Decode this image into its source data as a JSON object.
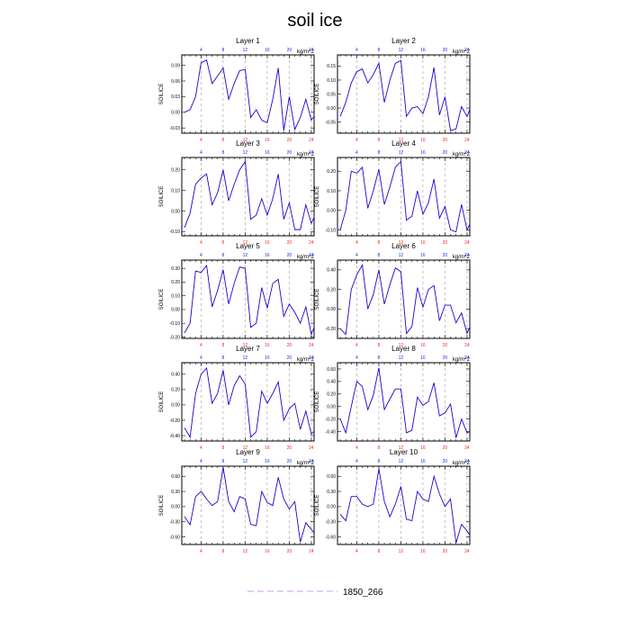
{
  "figure_title": "soil ice",
  "legend": {
    "label": "1850_266",
    "color": "#cc99ee"
  },
  "colors": {
    "line": "#2200cc",
    "bottom_ticks": "#ff2222",
    "top_ticks": "#2222ff",
    "grid": "#888888"
  },
  "chart_data": [
    {
      "type": "line",
      "title": "Layer 1",
      "units": "kg/m^2",
      "ylabel": "SOILICE",
      "xlim": [
        0.5,
        24.5
      ],
      "ylim": [
        -0.04,
        0.11
      ],
      "yticks": [
        -0.03,
        0.0,
        0.03,
        0.06,
        0.09
      ],
      "ytick_labels": [
        "-0.03",
        "0.00",
        "0.03",
        "0.06",
        "0.09"
      ],
      "x": [
        1,
        2,
        3,
        4,
        5,
        6,
        7,
        8,
        9,
        10,
        11,
        12,
        13,
        14,
        15,
        16,
        17,
        18,
        19,
        20,
        21,
        22,
        23,
        24,
        25
      ],
      "values": [
        0.0,
        0.005,
        0.03,
        0.095,
        0.1,
        0.055,
        0.07,
        0.085,
        0.025,
        0.055,
        0.08,
        0.082,
        -0.01,
        0.005,
        -0.015,
        -0.02,
        0.025,
        0.085,
        -0.035,
        0.03,
        -0.033,
        -0.01,
        0.025,
        -0.015,
        0.0
      ]
    },
    {
      "type": "line",
      "title": "Layer 2",
      "units": "kg/m^2",
      "ylabel": "SOILICE",
      "xlim": [
        0.5,
        24.5
      ],
      "ylim": [
        -0.09,
        0.19
      ],
      "yticks": [
        -0.05,
        0.0,
        0.05,
        0.1,
        0.15
      ],
      "ytick_labels": [
        "-0.05",
        "0.00",
        "0.05",
        "0.10",
        "0.15"
      ],
      "x": [
        1,
        2,
        3,
        4,
        5,
        6,
        7,
        8,
        9,
        10,
        11,
        12,
        13,
        14,
        15,
        16,
        17,
        18,
        19,
        20,
        21,
        22,
        23,
        24,
        25
      ],
      "values": [
        -0.03,
        0.02,
        0.09,
        0.13,
        0.14,
        0.09,
        0.12,
        0.16,
        0.02,
        0.1,
        0.16,
        0.17,
        -0.03,
        0.0,
        0.005,
        -0.02,
        0.04,
        0.145,
        -0.025,
        0.04,
        -0.08,
        -0.075,
        0.005,
        -0.03,
        0.02
      ]
    },
    {
      "type": "line",
      "title": "Layer 3",
      "units": "kg/m^2",
      "ylabel": "SOILICE",
      "xlim": [
        0.5,
        24.5
      ],
      "ylim": [
        -0.12,
        0.26
      ],
      "yticks": [
        -0.1,
        0.0,
        0.1,
        0.2
      ],
      "ytick_labels": [
        "-0.10",
        "0.00",
        "0.10",
        "0.20"
      ],
      "x": [
        1,
        2,
        3,
        4,
        5,
        6,
        7,
        8,
        9,
        10,
        11,
        12,
        13,
        14,
        15,
        16,
        17,
        18,
        19,
        20,
        21,
        22,
        23,
        24,
        25
      ],
      "values": [
        -0.08,
        -0.01,
        0.13,
        0.16,
        0.18,
        0.03,
        0.09,
        0.2,
        0.05,
        0.13,
        0.2,
        0.24,
        -0.04,
        -0.02,
        0.06,
        -0.02,
        0.06,
        0.18,
        -0.04,
        0.04,
        -0.09,
        -0.09,
        0.03,
        -0.06,
        0.0
      ]
    },
    {
      "type": "line",
      "title": "Layer 4",
      "units": "kg/m^2",
      "ylabel": "SOILICE",
      "xlim": [
        0.5,
        24.5
      ],
      "ylim": [
        -0.13,
        0.27
      ],
      "yticks": [
        -0.1,
        0.0,
        0.1,
        0.2
      ],
      "ytick_labels": [
        "-0.10",
        "0.00",
        "0.10",
        "0.20"
      ],
      "x": [
        1,
        2,
        3,
        4,
        5,
        6,
        7,
        8,
        9,
        10,
        11,
        12,
        13,
        14,
        15,
        16,
        17,
        18,
        19,
        20,
        21,
        22,
        23,
        24,
        25
      ],
      "values": [
        -0.1,
        0.0,
        0.2,
        0.19,
        0.22,
        0.01,
        0.1,
        0.21,
        0.03,
        0.12,
        0.22,
        0.25,
        -0.05,
        -0.03,
        0.1,
        -0.02,
        0.04,
        0.16,
        -0.04,
        0.02,
        -0.1,
        -0.11,
        0.03,
        -0.1,
        -0.04
      ]
    },
    {
      "type": "line",
      "title": "Layer 5",
      "units": "kg/m^2",
      "ylabel": "SOILICE",
      "xlim": [
        0.5,
        24.5
      ],
      "ylim": [
        -0.21,
        0.36
      ],
      "yticks": [
        -0.2,
        -0.1,
        0.0,
        0.1,
        0.2,
        0.3
      ],
      "ytick_labels": [
        "-0.20",
        "-0.10",
        "0.00",
        "0.10",
        "0.20",
        "0.30"
      ],
      "x": [
        1,
        2,
        3,
        4,
        5,
        6,
        7,
        8,
        9,
        10,
        11,
        12,
        13,
        14,
        15,
        16,
        17,
        18,
        19,
        20,
        21,
        22,
        23,
        24,
        25
      ],
      "values": [
        -0.17,
        -0.1,
        0.28,
        0.27,
        0.32,
        0.02,
        0.14,
        0.29,
        0.04,
        0.19,
        0.31,
        0.3,
        -0.13,
        -0.1,
        0.16,
        0.01,
        0.19,
        0.22,
        -0.05,
        0.04,
        -0.02,
        -0.1,
        0.02,
        -0.18,
        -0.08
      ]
    },
    {
      "type": "line",
      "title": "Layer 6",
      "units": "kg/m^2",
      "ylabel": "SOILICE",
      "xlim": [
        0.5,
        24.5
      ],
      "ylim": [
        -0.3,
        0.5
      ],
      "yticks": [
        -0.2,
        0.0,
        0.2,
        0.4
      ],
      "ytick_labels": [
        "-0.20",
        "0.00",
        "0.20",
        "0.40"
      ],
      "x": [
        1,
        2,
        3,
        4,
        5,
        6,
        7,
        8,
        9,
        10,
        11,
        12,
        13,
        14,
        15,
        16,
        17,
        18,
        19,
        20,
        21,
        22,
        23,
        24,
        25
      ],
      "values": [
        -0.2,
        -0.26,
        0.2,
        0.35,
        0.45,
        0.0,
        0.15,
        0.4,
        0.05,
        0.25,
        0.42,
        0.38,
        -0.25,
        -0.18,
        0.22,
        0.02,
        0.2,
        0.24,
        -0.12,
        0.04,
        0.04,
        -0.14,
        -0.04,
        -0.25,
        -0.12
      ]
    },
    {
      "type": "line",
      "title": "Layer 7",
      "units": "kg/m^2",
      "ylabel": "SOILICE",
      "xlim": [
        0.5,
        24.5
      ],
      "ylim": [
        -0.47,
        0.55
      ],
      "yticks": [
        -0.4,
        -0.2,
        0.0,
        0.2,
        0.4
      ],
      "ytick_labels": [
        "-0.40",
        "-0.20",
        "0.00",
        "0.20",
        "0.40"
      ],
      "x": [
        1,
        2,
        3,
        4,
        5,
        6,
        7,
        8,
        9,
        10,
        11,
        12,
        13,
        14,
        15,
        16,
        17,
        18,
        19,
        20,
        21,
        22,
        23,
        24,
        25
      ],
      "values": [
        -0.3,
        -0.42,
        0.15,
        0.4,
        0.48,
        0.02,
        0.15,
        0.45,
        0.0,
        0.25,
        0.38,
        0.27,
        -0.42,
        -0.35,
        0.18,
        0.02,
        0.15,
        0.3,
        -0.2,
        -0.05,
        0.02,
        -0.32,
        -0.08,
        -0.38,
        -0.3
      ]
    },
    {
      "type": "line",
      "title": "Layer 8",
      "units": "kg/m^2",
      "ylabel": "SOILICE",
      "xlim": [
        0.5,
        24.5
      ],
      "ylim": [
        -0.55,
        0.7
      ],
      "yticks": [
        -0.4,
        -0.2,
        0.0,
        0.2,
        0.4,
        0.6
      ],
      "ytick_labels": [
        "-0.40",
        "-0.20",
        "0.00",
        "0.20",
        "0.40",
        "0.60"
      ],
      "x": [
        1,
        2,
        3,
        4,
        5,
        6,
        7,
        8,
        9,
        10,
        11,
        12,
        13,
        14,
        15,
        16,
        17,
        18,
        19,
        20,
        21,
        22,
        23,
        24,
        25
      ],
      "values": [
        -0.2,
        -0.42,
        0.0,
        0.4,
        0.32,
        -0.05,
        0.18,
        0.62,
        -0.05,
        0.12,
        0.28,
        0.28,
        -0.42,
        -0.38,
        0.15,
        0.02,
        0.08,
        0.38,
        -0.15,
        -0.1,
        0.04,
        -0.5,
        -0.2,
        -0.42,
        -0.38
      ]
    },
    {
      "type": "line",
      "title": "Layer 9",
      "units": "kg/m^2",
      "ylabel": "SOILICE",
      "xlim": [
        0.5,
        24.5
      ],
      "ylim": [
        -0.75,
        0.8
      ],
      "yticks": [
        -0.6,
        -0.3,
        0.0,
        0.3,
        0.6
      ],
      "ytick_labels": [
        "-0.60",
        "-0.30",
        "0.00",
        "0.30",
        "0.60"
      ],
      "x": [
        1,
        2,
        3,
        4,
        5,
        6,
        7,
        8,
        9,
        10,
        11,
        12,
        13,
        14,
        15,
        16,
        17,
        18,
        19,
        20,
        21,
        22,
        23,
        24,
        25
      ],
      "values": [
        -0.2,
        -0.36,
        0.2,
        0.3,
        0.15,
        0.02,
        0.1,
        0.78,
        0.1,
        -0.1,
        0.2,
        0.15,
        -0.35,
        -0.38,
        0.3,
        0.08,
        0.02,
        0.58,
        0.15,
        -0.05,
        0.1,
        -0.7,
        -0.32,
        -0.45,
        -0.6
      ]
    },
    {
      "type": "line",
      "title": "Layer 10",
      "units": "kg/m^2",
      "ylabel": "SOILICE",
      "xlim": [
        0.5,
        24.5
      ],
      "ylim": [
        -0.75,
        0.8
      ],
      "yticks": [
        -0.6,
        -0.3,
        0.0,
        0.3,
        0.6
      ],
      "ytick_labels": [
        "-0.60",
        "-0.30",
        "0.00",
        "0.30",
        "0.60"
      ],
      "x": [
        1,
        2,
        3,
        4,
        5,
        6,
        7,
        8,
        9,
        10,
        11,
        12,
        13,
        14,
        15,
        16,
        17,
        18,
        19,
        20,
        21,
        22,
        23,
        24,
        25
      ],
      "values": [
        -0.15,
        -0.28,
        0.2,
        0.2,
        0.05,
        0.0,
        0.05,
        0.75,
        0.1,
        -0.2,
        0.05,
        0.4,
        -0.25,
        -0.28,
        0.3,
        0.15,
        0.1,
        0.6,
        0.25,
        0.0,
        0.15,
        -0.72,
        -0.35,
        -0.48,
        -0.65
      ]
    }
  ],
  "xticks": {
    "bottom": [
      4,
      8,
      12,
      16,
      20,
      24
    ],
    "top": [
      4,
      8,
      12,
      16,
      20,
      24
    ]
  }
}
